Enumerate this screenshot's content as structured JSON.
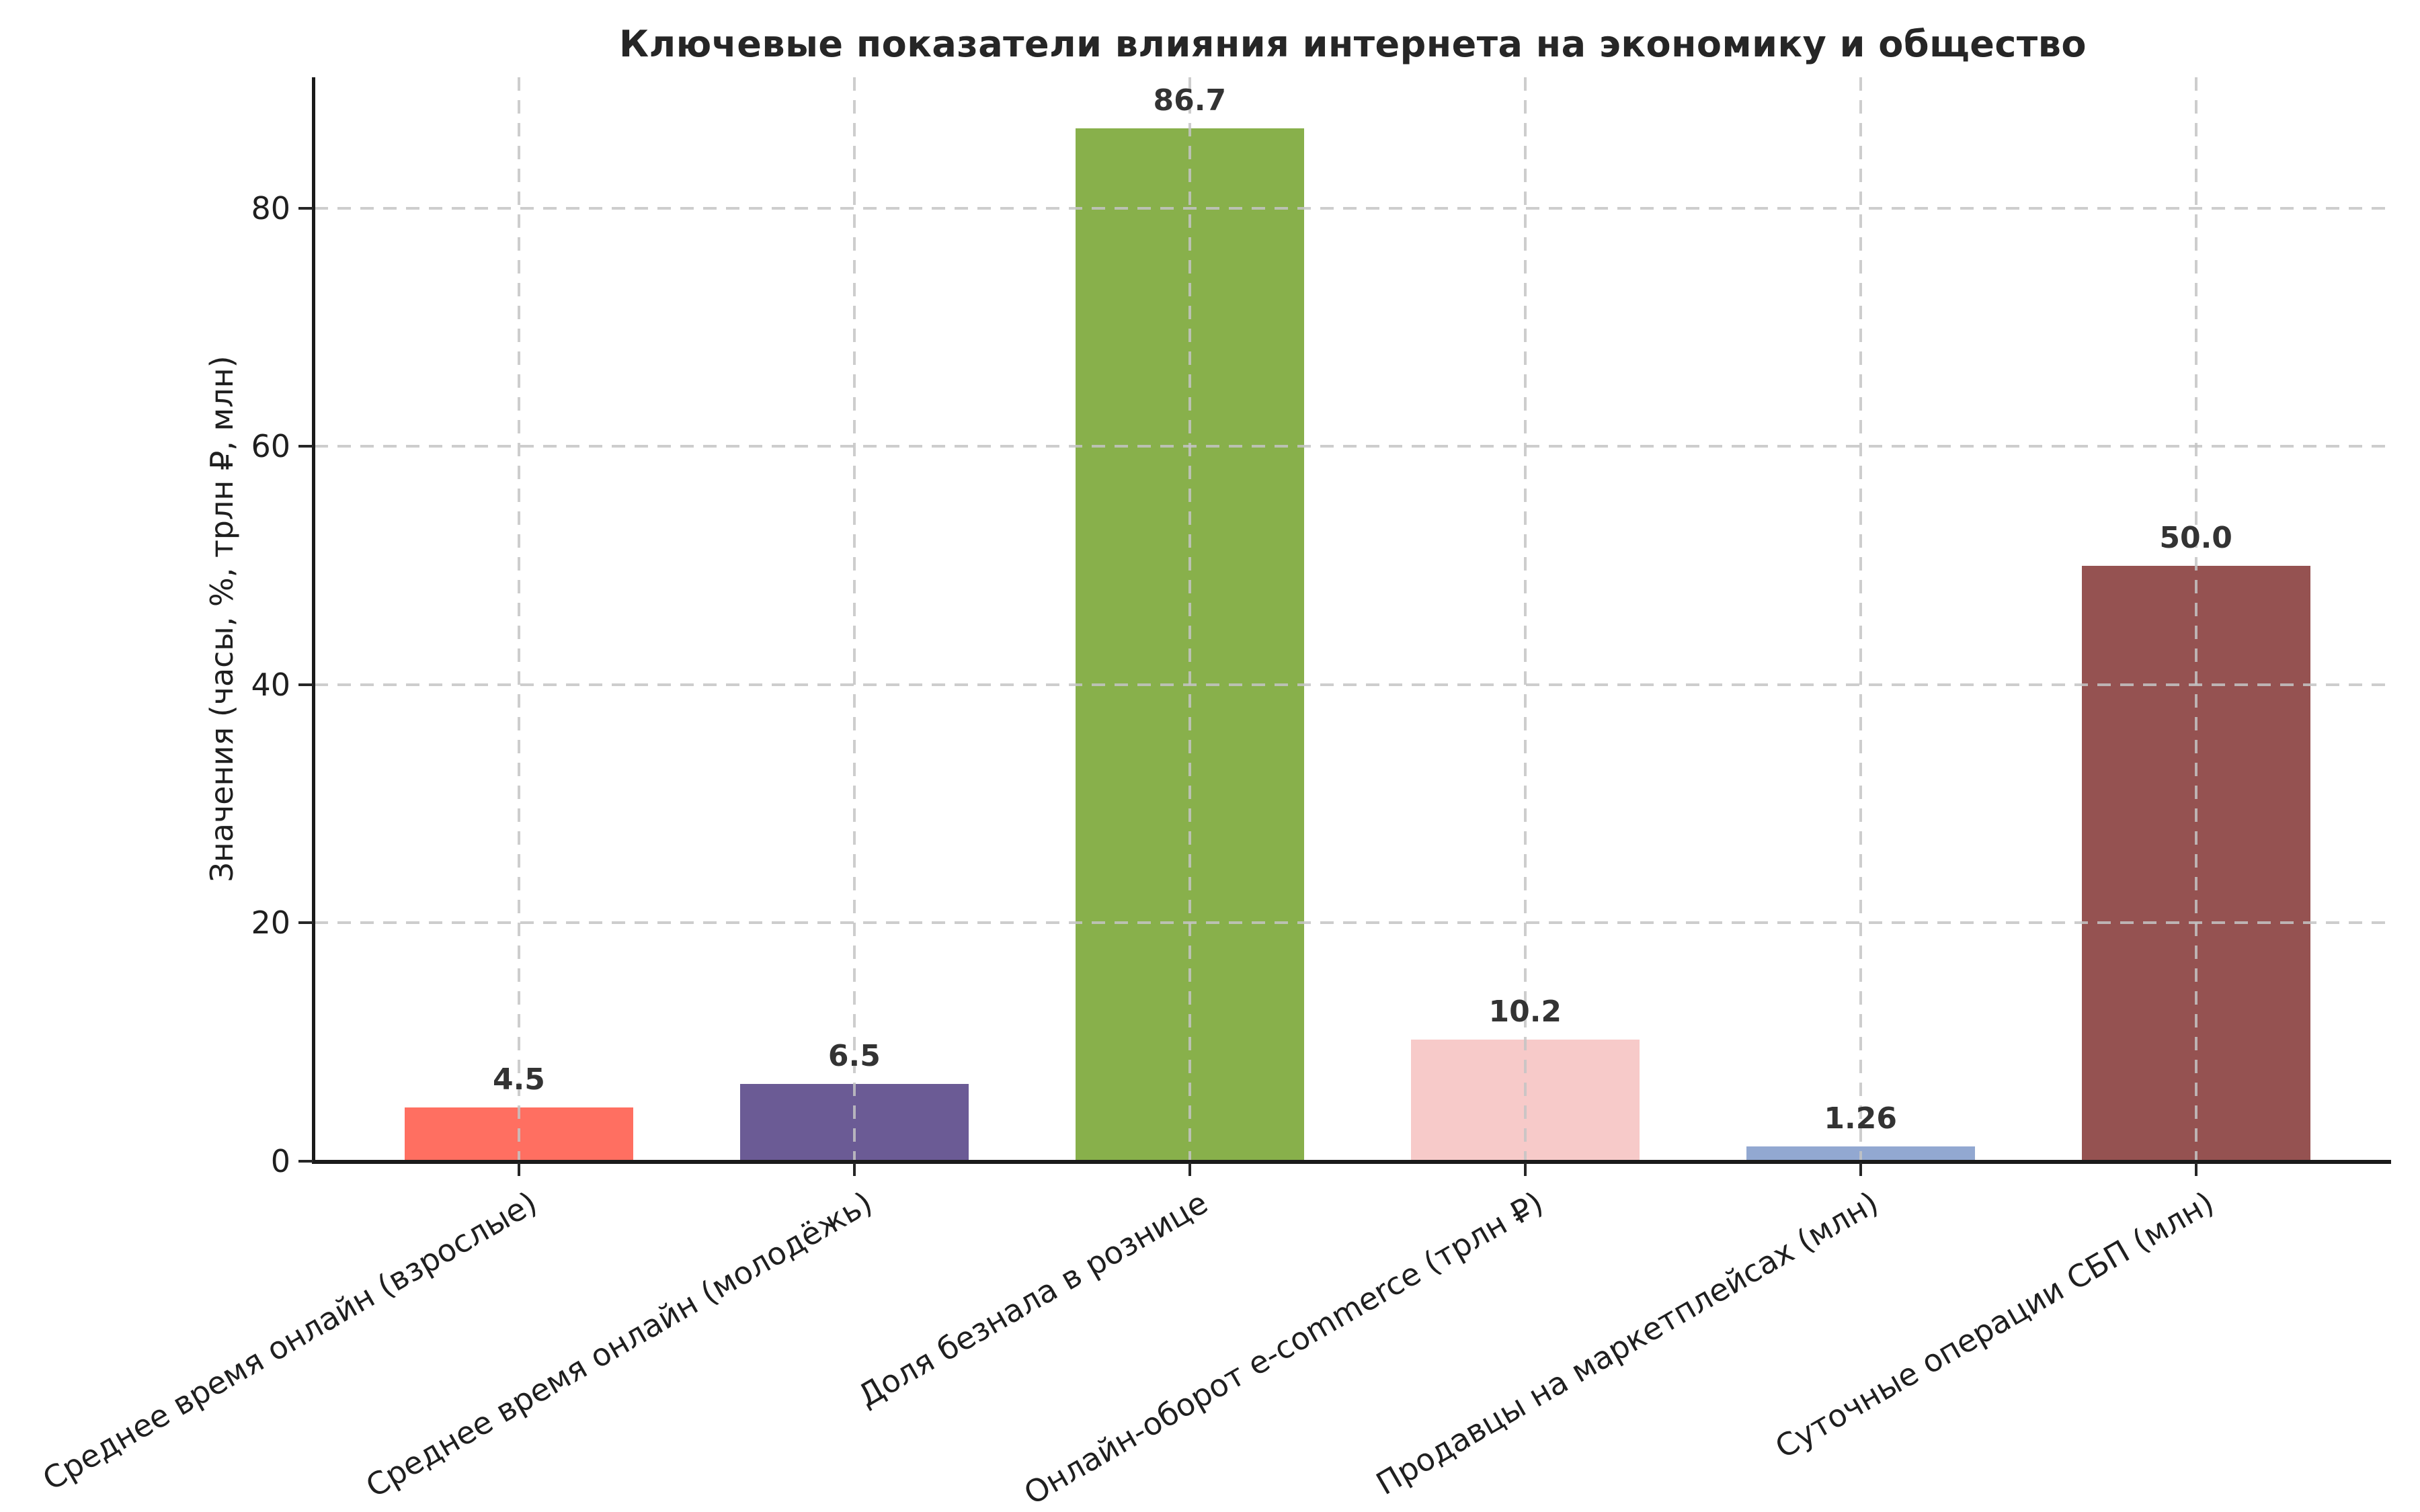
{
  "chart_data": {
    "type": "bar",
    "title": "Ключевые показатели влияния интернета на экономику и общество",
    "xlabel": "",
    "ylabel": "Значения (часы, %, трлн ₽, млн)",
    "categories": [
      "Среднее время онлайн (взрослые)",
      "Среднее время онлайн (молодёжь)",
      "Доля безнала в рознице",
      "Онлайн-оборот e-commerce (трлн ₽)",
      "Продавцы на маркетплейсах (млн)",
      "Суточные операции СБП (млн)"
    ],
    "values": [
      4.5,
      6.5,
      86.7,
      10.2,
      1.26,
      50.0
    ],
    "value_labels": [
      "4.5",
      "6.5",
      "86.7",
      "10.2",
      "1.26",
      "50.0"
    ],
    "bar_colors": [
      "#FF6F61",
      "#6B5B95",
      "#88B04B",
      "#F7CAC9",
      "#92A8D1",
      "#955251"
    ],
    "yticks": [
      0,
      20,
      40,
      60,
      80
    ],
    "ylim": [
      0,
      91
    ],
    "grid": "dashed gridlines on both axes, drawn over bars",
    "legend": "none"
  },
  "style": {
    "background": "#ffffff",
    "axis_color": "#262626",
    "grid_color": "#c4c4c4",
    "tick_label_color": "#1f1f1f",
    "title_color": "#262626",
    "value_label_color": "#333333"
  }
}
